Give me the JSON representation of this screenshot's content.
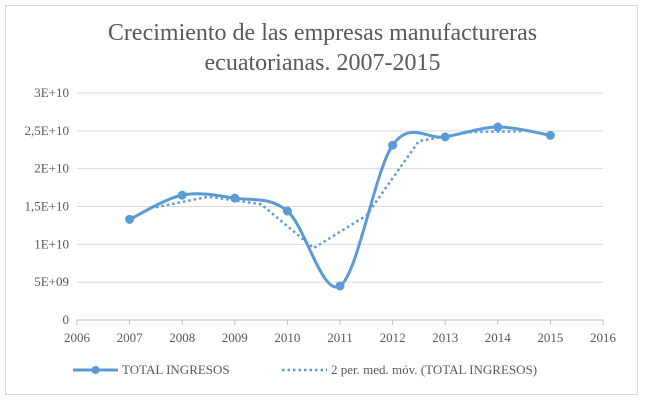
{
  "chart_data": {
    "type": "line",
    "title_lines": [
      "Crecimiento de las empresas manufactureras",
      "ecuatorianas. 2007-2015"
    ],
    "xlabel": "",
    "ylabel": "",
    "xlim": [
      2006,
      2016
    ],
    "ylim": [
      0,
      30000000000
    ],
    "x_ticks": [
      2006,
      2007,
      2008,
      2009,
      2010,
      2011,
      2012,
      2013,
      2014,
      2015,
      2016
    ],
    "x_tick_labels": [
      "2006",
      "2007",
      "2008",
      "2009",
      "2010",
      "2011",
      "2012",
      "2013",
      "2014",
      "2015",
      "2016"
    ],
    "y_ticks": [
      0,
      5000000000,
      10000000000,
      15000000000,
      20000000000,
      25000000000,
      30000000000
    ],
    "y_tick_labels": [
      "0",
      "5E+09",
      "1E+10",
      "1,5E+10",
      "2E+10",
      "2,5E+10",
      "3E+10"
    ],
    "grid": "horizontal",
    "legend_position": "bottom",
    "series": [
      {
        "name": "TOTAL INGRESOS",
        "style": "solid-with-markers",
        "color": "#5b9bd5",
        "x": [
          2007,
          2008,
          2009,
          2010,
          2011,
          2012,
          2013,
          2014,
          2015
        ],
        "values": [
          13300000000,
          16500000000,
          16100000000,
          14400000000,
          4500000000,
          23100000000,
          24200000000,
          25500000000,
          24400000000
        ]
      },
      {
        "name": "2 per. med. móv. (TOTAL INGRESOS)",
        "style": "dotted",
        "color": "#5b9bd5",
        "x": [
          2007.5,
          2008.5,
          2009.5,
          2010.5,
          2011.5,
          2012.5,
          2013.5,
          2014.5
        ],
        "values": [
          14900000000,
          16300000000,
          15300000000,
          9500000000,
          13800000000,
          23650000000,
          24850000000,
          24950000000
        ]
      }
    ]
  }
}
